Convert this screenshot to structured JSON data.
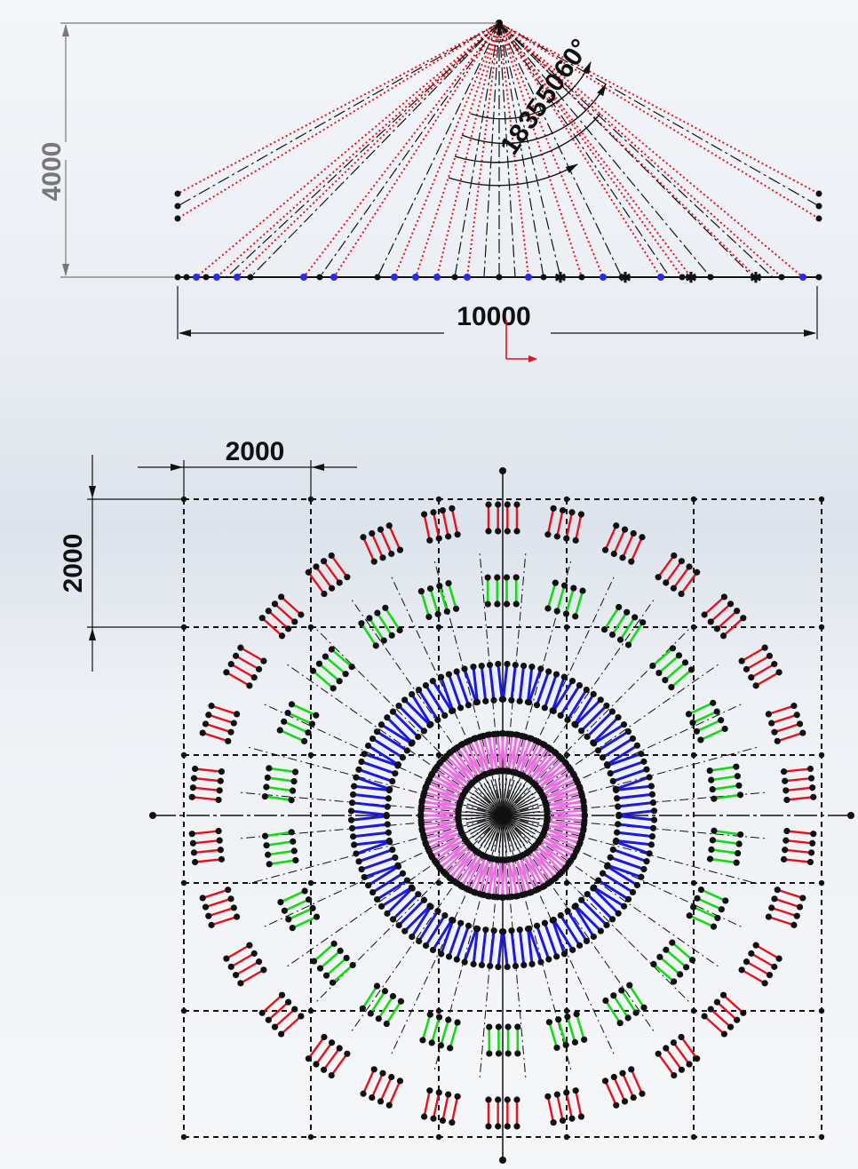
{
  "side_view": {
    "height_dim": "4000",
    "width_dim": "10000",
    "angle_labels": [
      "18",
      "35",
      "50",
      "60°"
    ]
  },
  "plan_view": {
    "grid_dim_h": "2000",
    "grid_dim_v": "2000"
  },
  "colors": {
    "red": "#e8101a",
    "green": "#14dc14",
    "blue": "#1a1ae0",
    "pink": "#e870e0",
    "black": "#111111",
    "dim_grey": "#7a7a7a"
  }
}
